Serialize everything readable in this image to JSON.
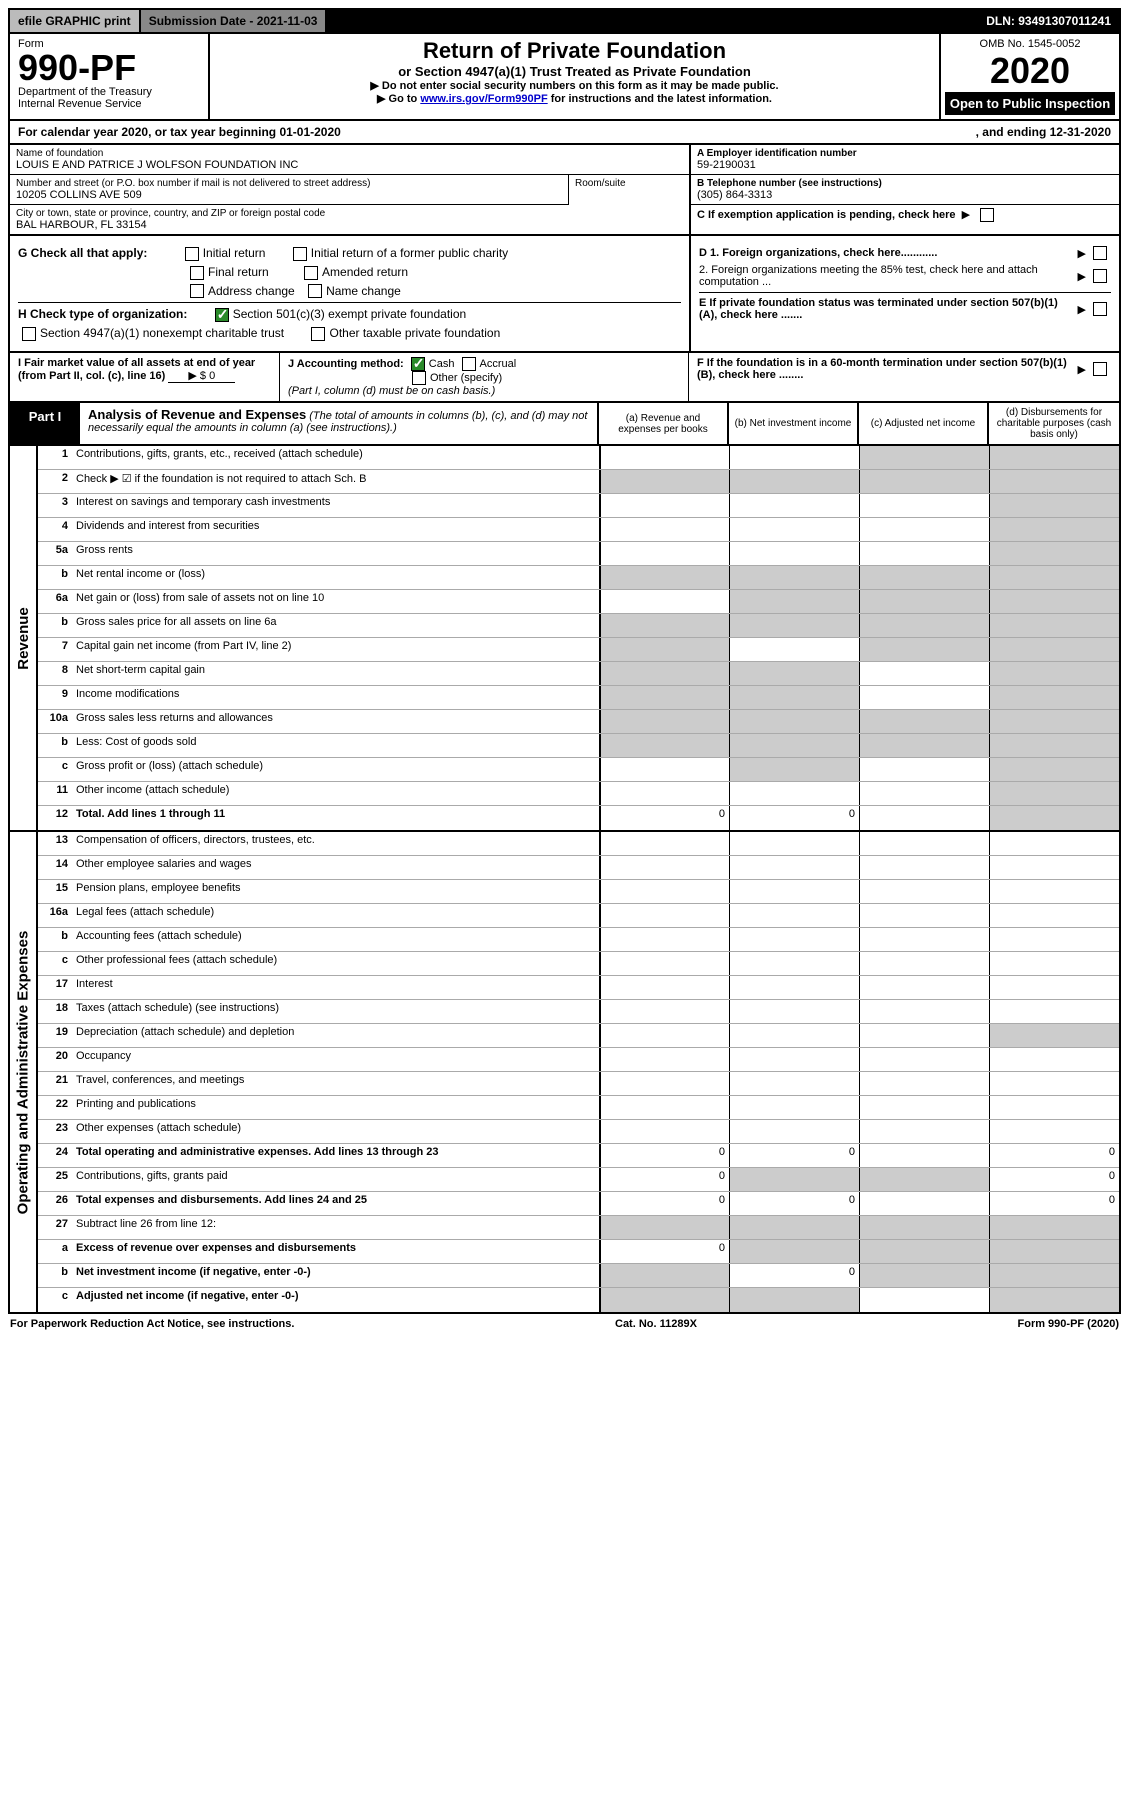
{
  "topbar": {
    "efile": "efile GRAPHIC print",
    "submission": "Submission Date - 2021-11-03",
    "dln": "DLN: 93491307011241"
  },
  "header": {
    "form_word": "Form",
    "form_no": "990-PF",
    "dept": "Department of the Treasury",
    "irs": "Internal Revenue Service",
    "title": "Return of Private Foundation",
    "sub1": "or Section 4947(a)(1) Trust Treated as Private Foundation",
    "sub2a": "▶ Do not enter social security numbers on this form as it may be made public.",
    "sub2b": "▶ Go to ",
    "link": "www.irs.gov/Form990PF",
    "sub2c": " for instructions and the latest information.",
    "omb": "OMB No. 1545-0052",
    "year": "2020",
    "open": "Open to Public Inspection"
  },
  "cal": {
    "a": "For calendar year 2020, or tax year beginning 01-01-2020",
    "b": ", and ending 12-31-2020"
  },
  "info": {
    "name_lbl": "Name of foundation",
    "name": "LOUIS E AND PATRICE J WOLFSON FOUNDATION INC",
    "addr_lbl": "Number and street (or P.O. box number if mail is not delivered to street address)",
    "addr": "10205 COLLINS AVE 509",
    "room_lbl": "Room/suite",
    "city_lbl": "City or town, state or province, country, and ZIP or foreign postal code",
    "city": "BAL HARBOUR, FL  33154",
    "ein_lbl": "A Employer identification number",
    "ein": "59-2190031",
    "tel_lbl": "B Telephone number (see instructions)",
    "tel": "(305) 864-3313",
    "c": "C If exemption application is pending, check here",
    "d1": "D 1. Foreign organizations, check here............",
    "d2": "2. Foreign organizations meeting the 85% test, check here and attach computation ...",
    "e": "E  If private foundation status was terminated under section 507(b)(1)(A), check here .......",
    "f": "F  If the foundation is in a 60-month termination under section 507(b)(1)(B), check here ........"
  },
  "g": {
    "lbl": "G Check all that apply:",
    "opts": [
      "Initial return",
      "Final return",
      "Address change",
      "Initial return of a former public charity",
      "Amended return",
      "Name change"
    ]
  },
  "h": {
    "lbl": "H Check type of organization:",
    "a": "Section 501(c)(3) exempt private foundation",
    "b": "Section 4947(a)(1) nonexempt charitable trust",
    "c": "Other taxable private foundation"
  },
  "i": {
    "lbl": "I Fair market value of all assets at end of year (from Part II, col. (c), line 16)",
    "val": "▶ $  0"
  },
  "j": {
    "lbl": "J Accounting method:",
    "cash": "Cash",
    "accrual": "Accrual",
    "other": "Other (specify)",
    "note": "(Part I, column (d) must be on cash basis.)"
  },
  "part1": {
    "lbl": "Part I",
    "title": "Analysis of Revenue and Expenses",
    "note": "(The total of amounts in columns (b), (c), and (d) may not necessarily equal the amounts in column (a) (see instructions).)",
    "cols": {
      "a": "(a) Revenue and expenses per books",
      "b": "(b) Net investment income",
      "c": "(c) Adjusted net income",
      "d": "(d) Disbursements for charitable purposes (cash basis only)"
    }
  },
  "sections": {
    "revenue": "Revenue",
    "expenses": "Operating and Administrative Expenses"
  },
  "rev_rows": [
    {
      "n": "1",
      "d": "Contributions, gifts, grants, etc., received (attach schedule)",
      "g": [
        "",
        "",
        "d",
        "d"
      ]
    },
    {
      "n": "2",
      "d": "Check ▶ ☑ if the foundation is not required to attach Sch. B",
      "g": [
        "g",
        "g",
        "g",
        "g"
      ]
    },
    {
      "n": "3",
      "d": "Interest on savings and temporary cash investments",
      "g": [
        "",
        "",
        "",
        "d"
      ]
    },
    {
      "n": "4",
      "d": "Dividends and interest from securities",
      "g": [
        "",
        "",
        "",
        "d"
      ]
    },
    {
      "n": "5a",
      "d": "Gross rents",
      "g": [
        "",
        "",
        "",
        "d"
      ]
    },
    {
      "n": "b",
      "d": "Net rental income or (loss)",
      "g": [
        "g",
        "g",
        "g",
        "g"
      ]
    },
    {
      "n": "6a",
      "d": "Net gain or (loss) from sale of assets not on line 10",
      "g": [
        "",
        "g",
        "d",
        "d"
      ]
    },
    {
      "n": "b",
      "d": "Gross sales price for all assets on line 6a",
      "g": [
        "g",
        "g",
        "g",
        "g"
      ]
    },
    {
      "n": "7",
      "d": "Capital gain net income (from Part IV, line 2)",
      "g": [
        "g",
        "",
        "d",
        "d"
      ]
    },
    {
      "n": "8",
      "d": "Net short-term capital gain",
      "g": [
        "g",
        "g",
        "",
        "d"
      ]
    },
    {
      "n": "9",
      "d": "Income modifications",
      "g": [
        "g",
        "g",
        "",
        "d"
      ]
    },
    {
      "n": "10a",
      "d": "Gross sales less returns and allowances",
      "g": [
        "g",
        "g",
        "g",
        "g"
      ]
    },
    {
      "n": "b",
      "d": "Less: Cost of goods sold",
      "g": [
        "g",
        "g",
        "g",
        "g"
      ]
    },
    {
      "n": "c",
      "d": "Gross profit or (loss) (attach schedule)",
      "g": [
        "",
        "g",
        "",
        "d"
      ]
    },
    {
      "n": "11",
      "d": "Other income (attach schedule)",
      "g": [
        "",
        "",
        "",
        "d"
      ]
    },
    {
      "n": "12",
      "d": "Total. Add lines 1 through 11",
      "bold": true,
      "vals": [
        "0",
        "0",
        "",
        ""
      ],
      "g": [
        "",
        "",
        "",
        "d"
      ]
    }
  ],
  "exp_rows": [
    {
      "n": "13",
      "d": "Compensation of officers, directors, trustees, etc."
    },
    {
      "n": "14",
      "d": "Other employee salaries and wages"
    },
    {
      "n": "15",
      "d": "Pension plans, employee benefits"
    },
    {
      "n": "16a",
      "d": "Legal fees (attach schedule)"
    },
    {
      "n": "b",
      "d": "Accounting fees (attach schedule)"
    },
    {
      "n": "c",
      "d": "Other professional fees (attach schedule)"
    },
    {
      "n": "17",
      "d": "Interest"
    },
    {
      "n": "18",
      "d": "Taxes (attach schedule) (see instructions)"
    },
    {
      "n": "19",
      "d": "Depreciation (attach schedule) and depletion",
      "g": [
        "",
        "",
        "",
        "d"
      ]
    },
    {
      "n": "20",
      "d": "Occupancy"
    },
    {
      "n": "21",
      "d": "Travel, conferences, and meetings"
    },
    {
      "n": "22",
      "d": "Printing and publications"
    },
    {
      "n": "23",
      "d": "Other expenses (attach schedule)"
    },
    {
      "n": "24",
      "d": "Total operating and administrative expenses. Add lines 13 through 23",
      "bold": true,
      "vals": [
        "0",
        "0",
        "",
        "0"
      ]
    },
    {
      "n": "25",
      "d": "Contributions, gifts, grants paid",
      "vals": [
        "0",
        "",
        "",
        "0"
      ],
      "g": [
        "",
        "d",
        "d",
        ""
      ]
    },
    {
      "n": "26",
      "d": "Total expenses and disbursements. Add lines 24 and 25",
      "bold": true,
      "vals": [
        "0",
        "0",
        "",
        "0"
      ]
    },
    {
      "n": "27",
      "d": "Subtract line 26 from line 12:",
      "g": [
        "g",
        "g",
        "g",
        "g"
      ]
    },
    {
      "n": "a",
      "d": "Excess of revenue over expenses and disbursements",
      "bold": true,
      "vals": [
        "0",
        "",
        "",
        ""
      ],
      "g": [
        "",
        "d",
        "d",
        "d"
      ]
    },
    {
      "n": "b",
      "d": "Net investment income (if negative, enter -0-)",
      "bold": true,
      "vals": [
        "",
        "0",
        "",
        ""
      ],
      "g": [
        "d",
        "",
        "d",
        "d"
      ]
    },
    {
      "n": "c",
      "d": "Adjusted net income (if negative, enter -0-)",
      "bold": true,
      "g": [
        "d",
        "d",
        "",
        "d"
      ]
    }
  ],
  "footer": {
    "a": "For Paperwork Reduction Act Notice, see instructions.",
    "b": "Cat. No. 11289X",
    "c": "Form 990-PF (2020)"
  },
  "style": {
    "bg": "#ffffff",
    "border": "#000000",
    "grey": "#cccccc",
    "link": "#0000cc",
    "check_green": "#2a8a2a"
  }
}
